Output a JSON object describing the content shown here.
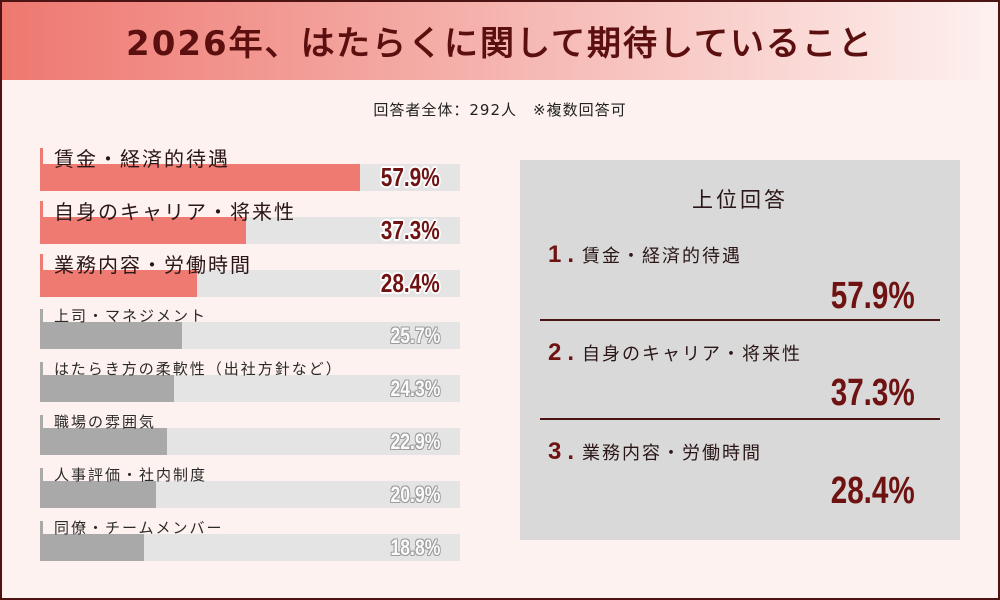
{
  "title": "2026年、はたらくに関して期待していること",
  "subtitle": "回答者全体：292人　※複数回答可",
  "colors": {
    "background": "#fdf2f0",
    "frame": "#4e1414",
    "banner_start": "#ee7870",
    "banner_end": "#fdf1ef",
    "title_text": "#5c0f0f",
    "highlight": "#ef7a72",
    "muted": "#a9a9a9",
    "track": "#e4e4e4",
    "accent_text": "#6e1212",
    "panel": "#d9d9d9"
  },
  "chart_data": {
    "type": "bar",
    "orientation": "horizontal",
    "categories": [
      "賃金・経済的待遇",
      "自身のキャリア・将来性",
      "業務内容・労働時間",
      "上司・マネジメント",
      "はたらき方の柔軟性（出社方針など）",
      "職場の雰囲気",
      "人事評価・社内制度",
      "同僚・チームメンバー"
    ],
    "values": [
      57.9,
      37.3,
      28.4,
      25.7,
      24.3,
      22.9,
      20.9,
      18.8
    ],
    "value_labels": [
      "57.9%",
      "37.3%",
      "28.4%",
      "25.7%",
      "24.3%",
      "22.9%",
      "20.9%",
      "18.8%"
    ],
    "bar_colors": [
      "#ef7a72",
      "#ef7a72",
      "#ef7a72",
      "#a9a9a9",
      "#a9a9a9",
      "#a9a9a9",
      "#a9a9a9",
      "#a9a9a9"
    ],
    "xlim": [
      0,
      76
    ],
    "grid": false
  },
  "top_answers": {
    "heading": "上位回答",
    "items": [
      {
        "rank": "1.",
        "label": "賃金・経済的待遇",
        "value": "57.9%"
      },
      {
        "rank": "2.",
        "label": "自身のキャリア・将来性",
        "value": "37.3%"
      },
      {
        "rank": "3.",
        "label": "業務内容・労働時間",
        "value": "28.4%"
      }
    ]
  }
}
